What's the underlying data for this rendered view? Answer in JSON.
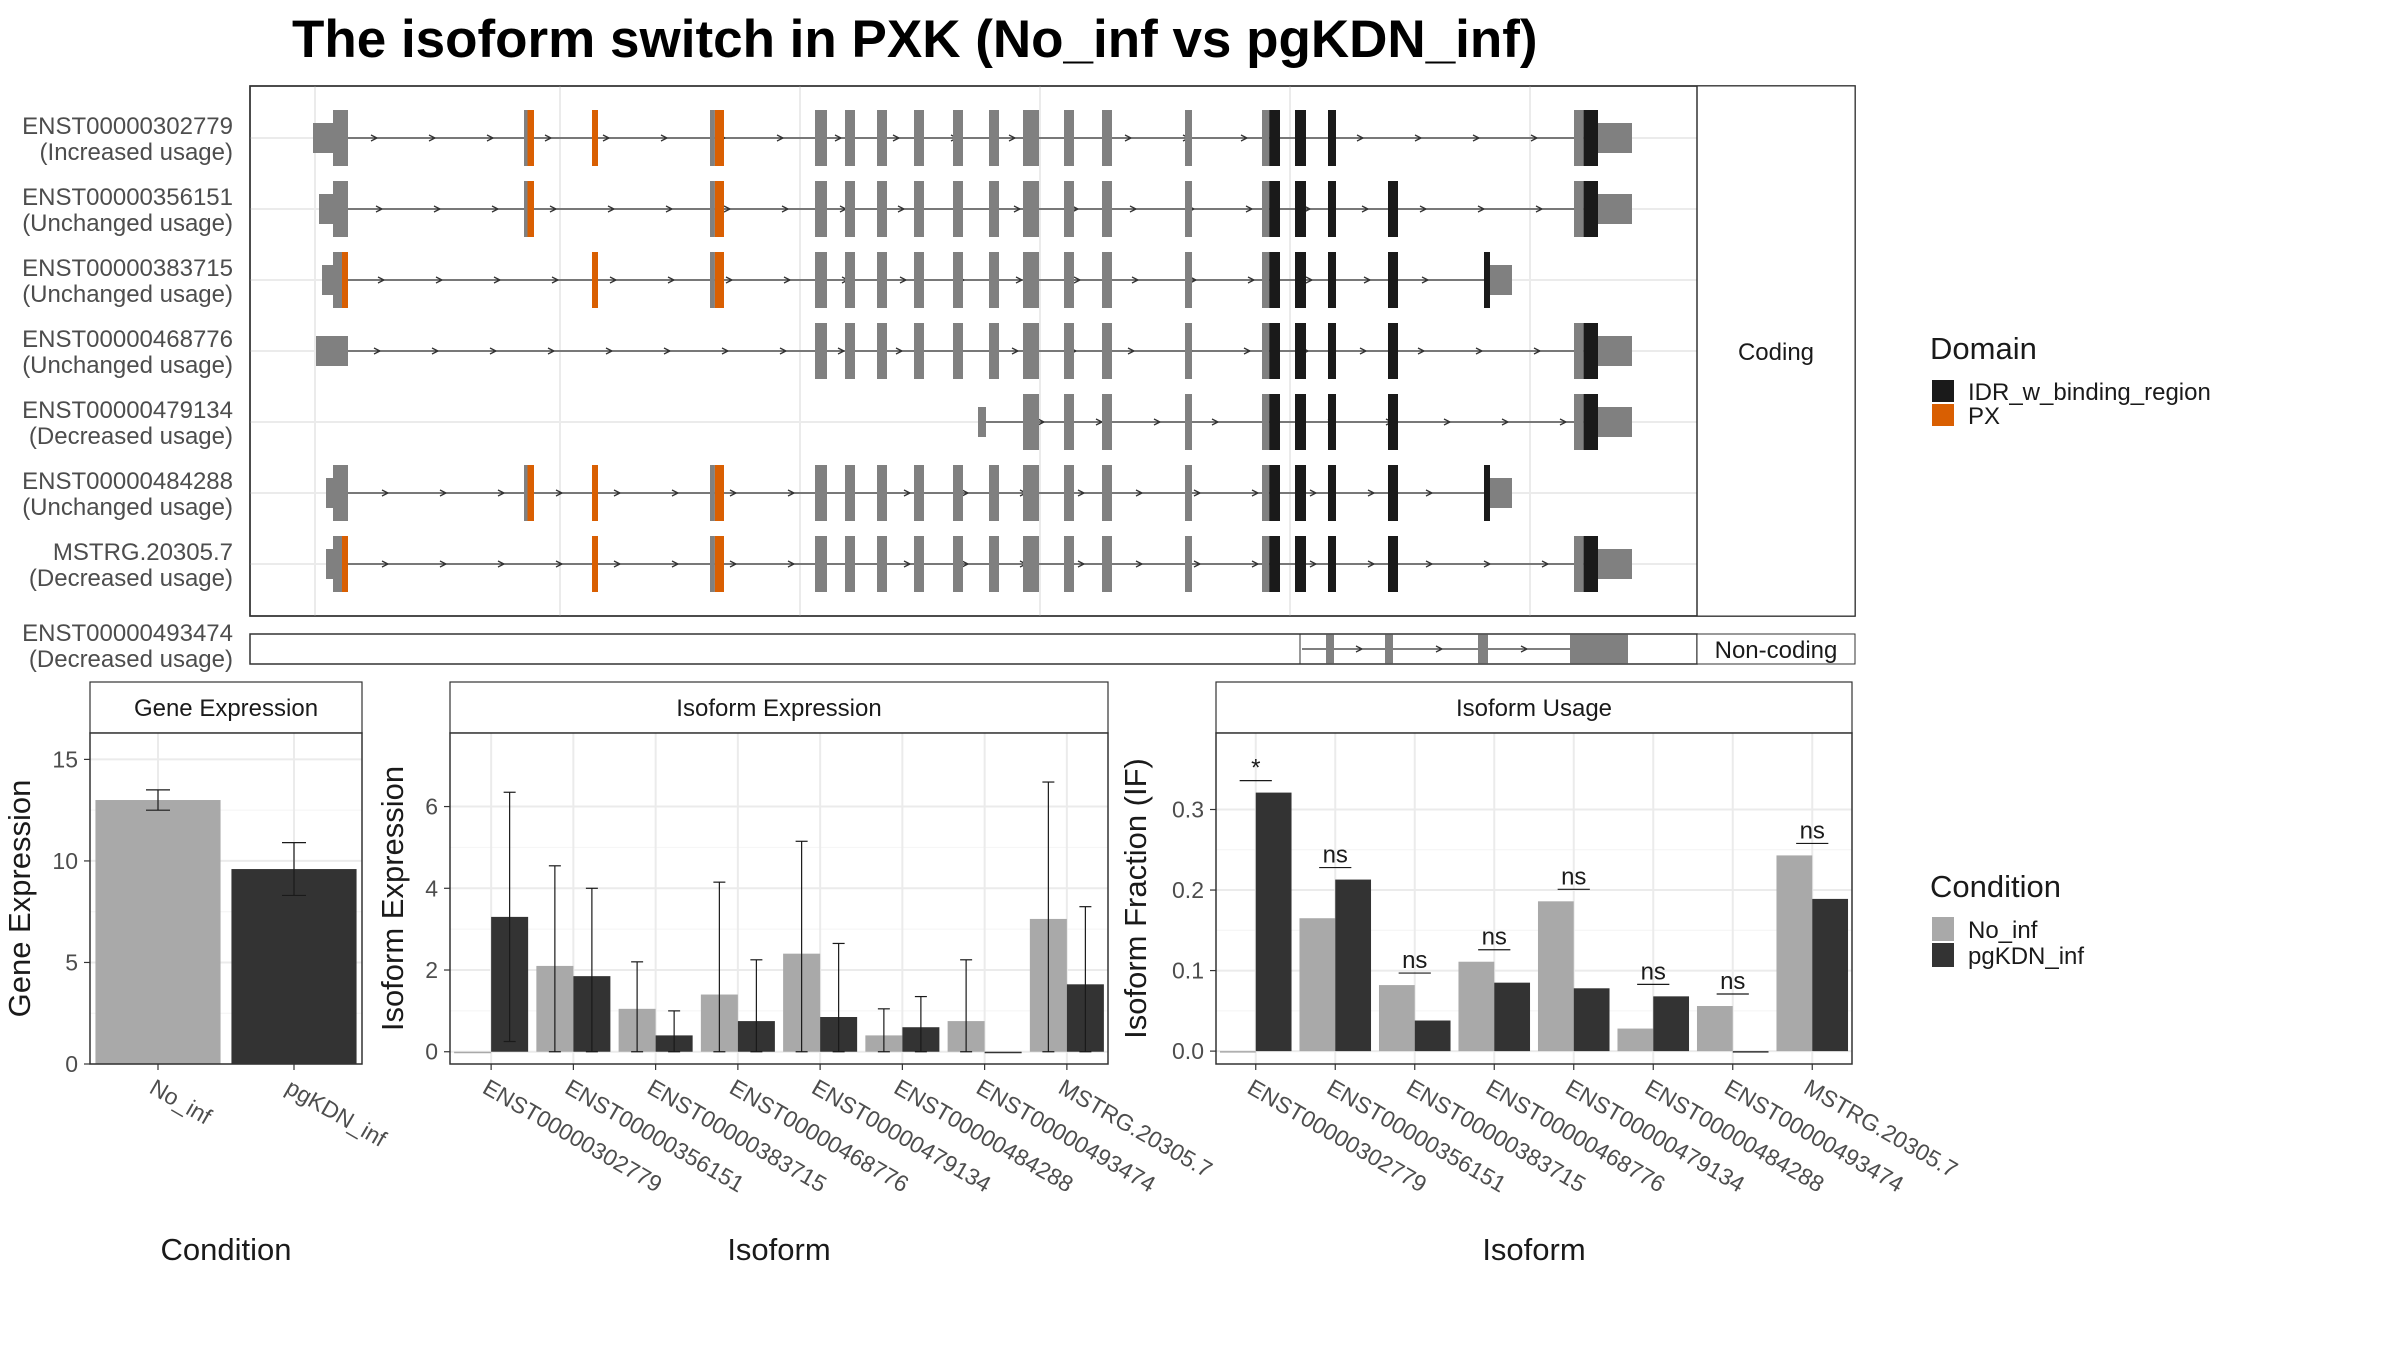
{
  "title": "The isoform switch in PXK (No_inf vs pgKDN_inf)",
  "structure": {
    "coding_strip": "Coding",
    "noncoding_strip": "Non-coding",
    "coding_isoforms": [
      {
        "id": "ENST00000302779",
        "usage": "(Increased usage)"
      },
      {
        "id": "ENST00000356151",
        "usage": "(Unchanged usage)"
      },
      {
        "id": "ENST00000383715",
        "usage": "(Unchanged usage)"
      },
      {
        "id": "ENST00000468776",
        "usage": "(Unchanged usage)"
      },
      {
        "id": "ENST00000479134",
        "usage": "(Decreased usage)"
      },
      {
        "id": "ENST00000484288",
        "usage": "(Unchanged usage)"
      },
      {
        "id": "MSTRG.20305.7",
        "usage": "(Decreased usage)"
      }
    ],
    "noncoding_isoforms": [
      {
        "id": "ENST00000493474",
        "usage": "(Decreased usage)"
      }
    ]
  },
  "domain_legend": {
    "title": "Domain",
    "items": [
      {
        "label": "IDR_w_binding_region",
        "color": "#1a1a1a"
      },
      {
        "label": "PX",
        "color": "#d95f02"
      }
    ]
  },
  "condition_legend": {
    "title": "Condition",
    "items": [
      {
        "label": "No_inf",
        "color": "#a9a9a9"
      },
      {
        "label": "pgKDN_inf",
        "color": "#333333"
      }
    ]
  },
  "chart_data": [
    {
      "type": "bar",
      "title": "Gene Expression",
      "xlabel": "Condition",
      "ylabel": "Gene Expression",
      "ylim": [
        0,
        16.3
      ],
      "yticks": [
        0,
        5,
        10,
        15
      ],
      "categories": [
        "No_inf",
        "pgKDN_inf"
      ],
      "values": [
        13.0,
        9.6
      ],
      "errors": [
        [
          12.5,
          13.5
        ],
        [
          8.3,
          10.9
        ]
      ]
    },
    {
      "type": "bar",
      "title": "Isoform Expression",
      "xlabel": "Isoform",
      "ylabel": "Isoform Expression",
      "ylim": [
        -0.3,
        7.8
      ],
      "yticks": [
        0,
        2,
        4,
        6
      ],
      "categories": [
        "ENST00000302779",
        "ENST00000356151",
        "ENST00000383715",
        "ENST00000468776",
        "ENST00000479134",
        "ENST00000484288",
        "ENST00000493474",
        "MSTRG.20305.7"
      ],
      "series": [
        {
          "name": "No_inf",
          "values": [
            0.0,
            2.1,
            1.05,
            1.4,
            2.4,
            0.4,
            0.75,
            3.25
          ],
          "errors": [
            [
              0.0,
              0.0
            ],
            [
              0.0,
              4.55
            ],
            [
              0.0,
              2.2
            ],
            [
              0.0,
              4.15
            ],
            [
              0.0,
              5.15
            ],
            [
              0.0,
              1.05
            ],
            [
              0.0,
              2.25
            ],
            [
              0.0,
              6.6
            ]
          ]
        },
        {
          "name": "pgKDN_inf",
          "values": [
            3.3,
            1.85,
            0.4,
            0.75,
            0.85,
            0.6,
            0.0,
            1.65
          ],
          "errors": [
            [
              0.25,
              6.35
            ],
            [
              0.0,
              4.0
            ],
            [
              0.0,
              1.0
            ],
            [
              0.0,
              2.25
            ],
            [
              0.0,
              2.65
            ],
            [
              0.0,
              1.35
            ],
            [
              0.0,
              0.0
            ],
            [
              0.0,
              3.55
            ]
          ]
        }
      ]
    },
    {
      "type": "bar",
      "title": "Isoform Usage",
      "xlabel": "Isoform",
      "ylabel": "Isoform Fraction (IF)",
      "ylim": [
        -0.016,
        0.395
      ],
      "yticks": [
        0.0,
        0.1,
        0.2,
        0.3
      ],
      "categories": [
        "ENST00000302779",
        "ENST00000356151",
        "ENST00000383715",
        "ENST00000468776",
        "ENST00000479134",
        "ENST00000484288",
        "ENST00000493474",
        "MSTRG.20305.7"
      ],
      "series": [
        {
          "name": "No_inf",
          "values": [
            0.0,
            0.165,
            0.082,
            0.111,
            0.186,
            0.028,
            0.056,
            0.243
          ]
        },
        {
          "name": "pgKDN_inf",
          "values": [
            0.321,
            0.213,
            0.038,
            0.085,
            0.078,
            0.068,
            0.0,
            0.189
          ]
        }
      ],
      "significance": [
        "*",
        "ns",
        "ns",
        "ns",
        "ns",
        "ns",
        "ns",
        "ns"
      ]
    }
  ]
}
